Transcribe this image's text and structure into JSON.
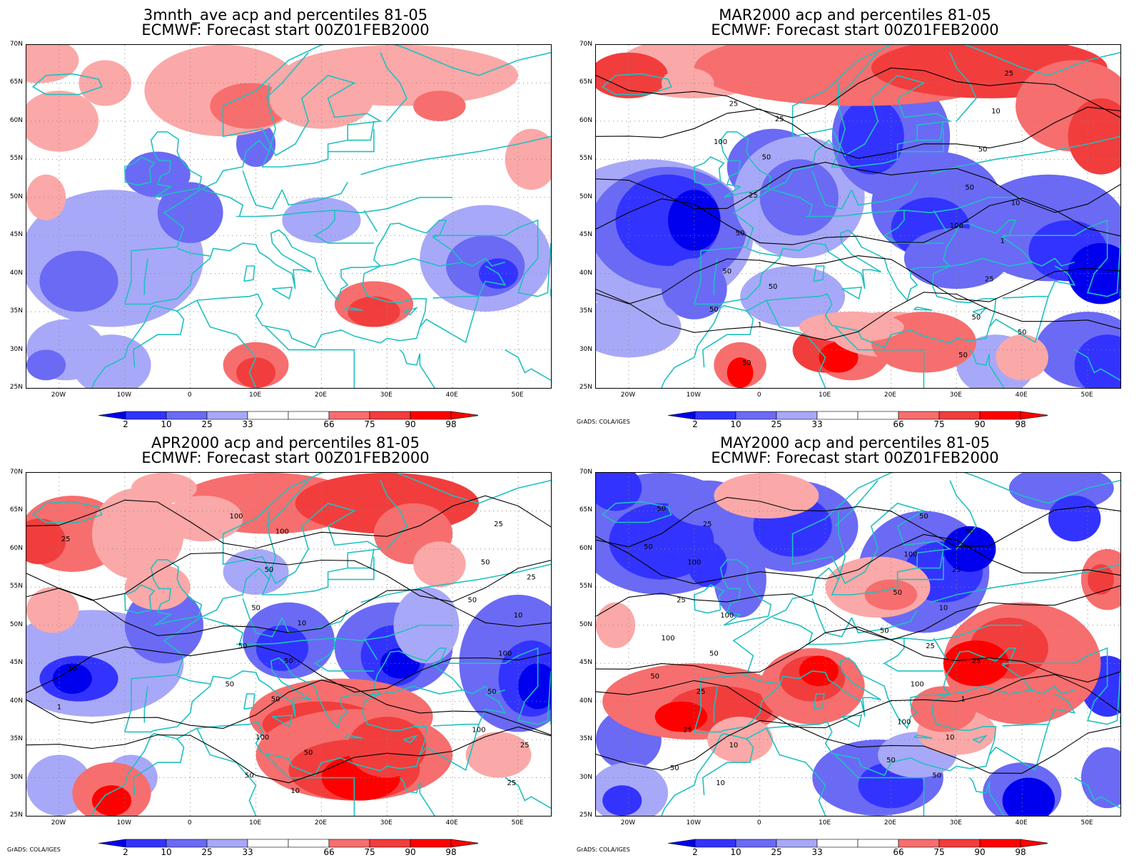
{
  "panels": [
    {
      "id": "tl",
      "title_line1": "3mnth_ave acp and percentiles 81-05",
      "title_line2": "ECMWF: Forecast start 00Z01FEB2000",
      "credit": "",
      "contours": []
    },
    {
      "id": "tr",
      "title_line1": "MAR2000 acp and percentiles 81-05",
      "title_line2": "ECMWF: Forecast start 00Z01FEB2000",
      "credit": "GrADS: COLA/IGES",
      "contours": [
        "50",
        "100",
        "100",
        "50",
        "50",
        "50",
        "25",
        "50",
        "50",
        "50",
        "50",
        "25",
        "25",
        "10",
        "1",
        "1",
        "50",
        "25",
        "50",
        "10",
        "25",
        "50"
      ]
    },
    {
      "id": "bl",
      "title_line1": "APR2000 acp and percentiles 81-05",
      "title_line2": "ECMWF: Forecast start 00Z01FEB2000",
      "credit": "GrADS: COLA/IGES",
      "contours": [
        "50",
        "50",
        "100",
        "100",
        "50",
        "50",
        "50",
        "50",
        "50",
        "25",
        "100",
        "100",
        "50",
        "25",
        "50",
        "10",
        "100",
        "25",
        "50",
        "25",
        "10",
        "1",
        "10",
        "25",
        "50",
        "10"
      ]
    },
    {
      "id": "br",
      "title_line1": "MAY2000 acp and percentiles 81-05",
      "title_line2": "ECMWF: Forecast start 00Z01FEB2000",
      "credit": "GrADS: COLA/IGES",
      "contours": [
        "50",
        "50",
        "50",
        "50",
        "50",
        "50",
        "100",
        "100",
        "100",
        "50",
        "100",
        "25",
        "50",
        "25",
        "25",
        "100",
        "50",
        "25",
        "10",
        "25",
        "10",
        "50",
        "25",
        "10",
        "1",
        "100",
        "50",
        "10",
        "25"
      ]
    }
  ],
  "axes": {
    "lat_labels": [
      "70N",
      "65N",
      "60N",
      "55N",
      "50N",
      "45N",
      "40N",
      "35N",
      "30N",
      "25N"
    ],
    "lon_labels": [
      "20W",
      "10W",
      "0",
      "10E",
      "20E",
      "30E",
      "40E",
      "50E"
    ]
  },
  "colorbar": {
    "labels": [
      "2",
      "10",
      "25",
      "33",
      "66",
      "75",
      "90",
      "98"
    ],
    "colors": [
      "#0000ee",
      "#3333ff",
      "#6a6af5",
      "#a8a8f8",
      "#ffffff",
      "#fba8a8",
      "#f76e6e",
      "#f23d3d",
      "#ff0000"
    ]
  }
}
